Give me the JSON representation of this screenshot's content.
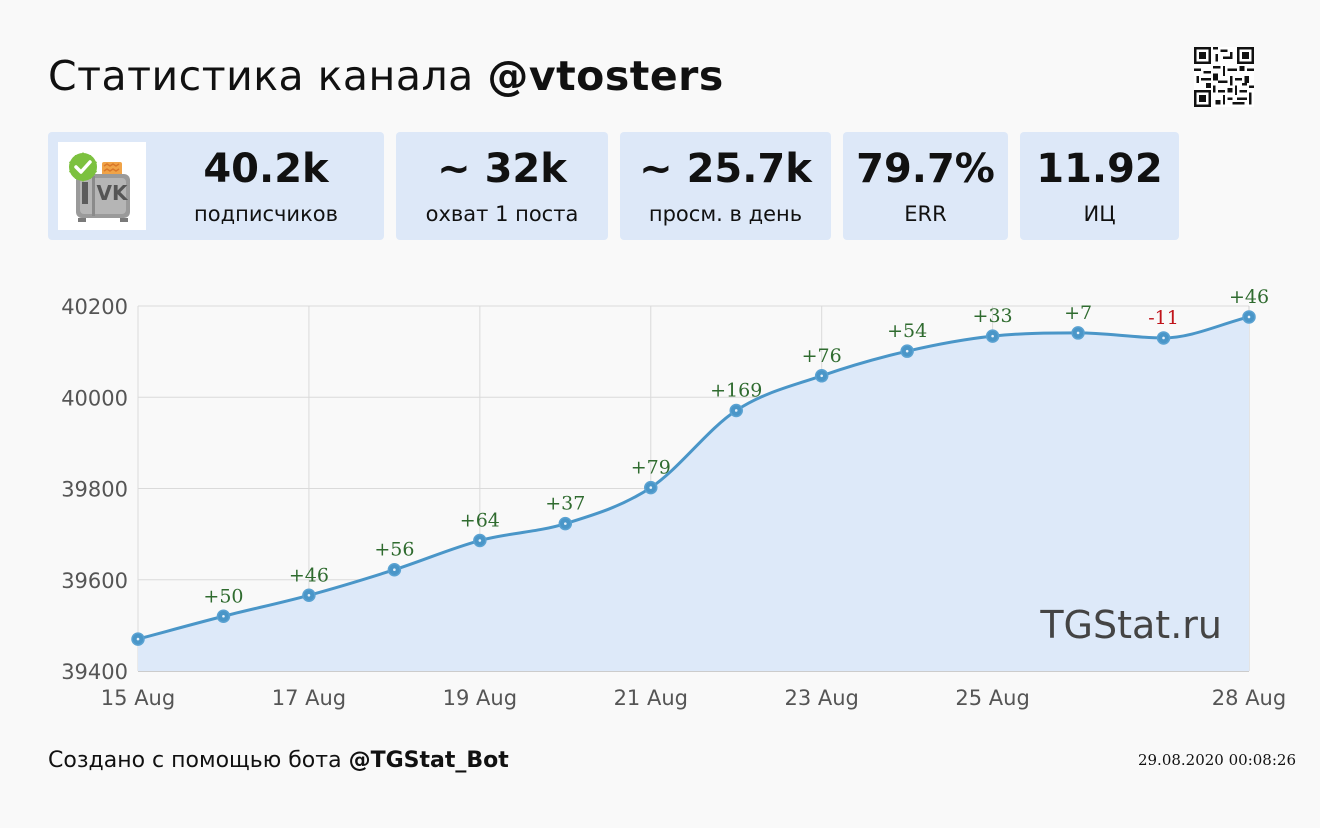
{
  "header": {
    "title_prefix": "Статистика канала",
    "channel": "@vtosters"
  },
  "stats": [
    {
      "value": "40.2k",
      "label": "подписчиков"
    },
    {
      "value": "~ 32k",
      "label": "охват 1 поста"
    },
    {
      "value": "~ 25.7k",
      "label": "просм. в день"
    },
    {
      "value": "79.7%",
      "label": "ERR"
    },
    {
      "value": "11.92",
      "label": "ИЦ"
    }
  ],
  "avatar": {
    "icon": "vk-toaster-logo-icon",
    "text": "VK"
  },
  "watermark": "TGStat.ru",
  "footer": {
    "created_prefix": "Создано с помощью бота",
    "bot": "@TGStat_Bot",
    "timestamp": "29.08.2020 00:08:26"
  },
  "colors": {
    "line": "#4a96c8",
    "area": "#dde9f9",
    "positive": "#2f6b2f",
    "negative": "#c0141b",
    "card": "#dde8f8"
  },
  "chart_data": {
    "type": "area",
    "x": [
      "15 Aug",
      "16 Aug",
      "17 Aug",
      "18 Aug",
      "19 Aug",
      "20 Aug",
      "21 Aug",
      "22 Aug",
      "23 Aug",
      "24 Aug",
      "25 Aug",
      "26 Aug",
      "27 Aug",
      "28 Aug"
    ],
    "values": [
      39470,
      39520,
      39566,
      39622,
      39686,
      39723,
      39802,
      39971,
      40047,
      40101,
      40134,
      40141,
      40130,
      40176
    ],
    "point_labels": [
      "",
      "+50",
      "+46",
      "+56",
      "+64",
      "+37",
      "+79",
      "+169",
      "+76",
      "+54",
      "+33",
      "+7",
      "-11",
      "+46"
    ],
    "x_ticks": [
      "15 Aug",
      "17 Aug",
      "19 Aug",
      "21 Aug",
      "23 Aug",
      "25 Aug",
      "28 Aug"
    ],
    "x_tick_indices": [
      0,
      2,
      4,
      6,
      8,
      10,
      13
    ],
    "y_ticks": [
      40200,
      40000,
      39800,
      39600,
      39400
    ],
    "ylim": [
      39400,
      40200
    ],
    "grid": true,
    "legend": "none"
  }
}
